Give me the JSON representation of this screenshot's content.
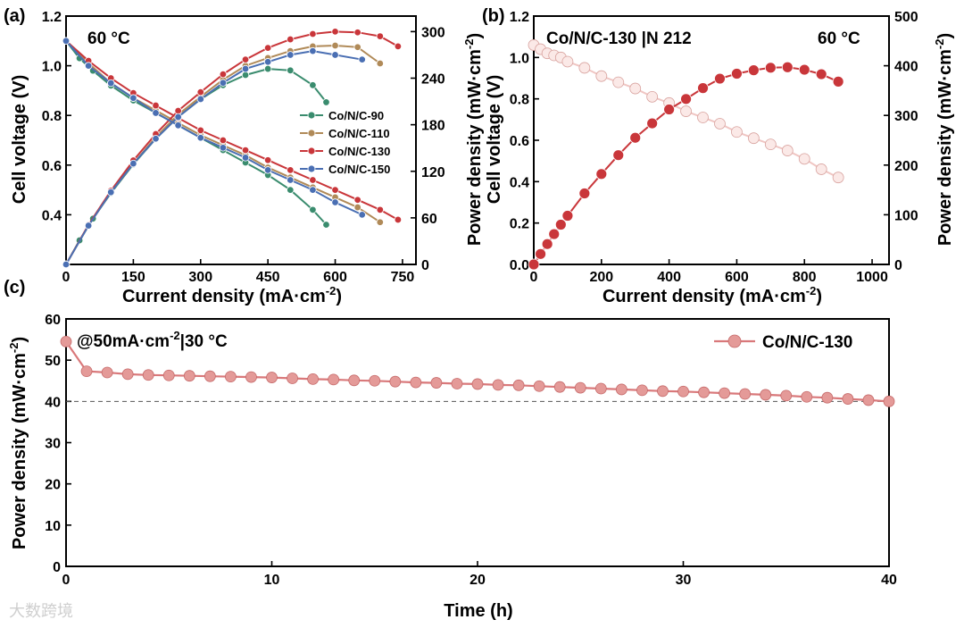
{
  "panels": {
    "a": {
      "label": "(a)",
      "temperature": "60 °C",
      "xlabel": "Current density (mA·cm",
      "xlabel_sup": "-2",
      "xlabel_end": ")",
      "ylabel_left": "Cell voltage (V)",
      "ylabel_right": "Power density (mW·cm",
      "ylabel_right_sup": "-2",
      "ylabel_right_end": ")"
    },
    "b": {
      "label": "(b)",
      "title": "Co/N/C-130 |N 212",
      "temperature": "60 °C",
      "xlabel": "Current density (mA·cm",
      "xlabel_sup": "-2",
      "xlabel_end": ")",
      "ylabel_left": "Cell voltage (V)",
      "ylabel_right": "Power density (mW·cm",
      "ylabel_right_sup": "-2",
      "ylabel_right_end": ")"
    },
    "c": {
      "label": "(c)",
      "condition": "@50mA·cm",
      "condition_sup": "-2",
      "condition_end": "|30 °C",
      "xlabel": "Time (h)",
      "ylabel": "Power density (mW·cm",
      "ylabel_sup": "-2",
      "ylabel_end": ")"
    }
  },
  "watermark": "大数跨境",
  "chart_data": [
    {
      "type": "line",
      "panel": "a",
      "title": "",
      "xlabel": "Current density (mA·cm-2)",
      "ylabel": "Cell voltage (V)",
      "y2label": "Power density (mW·cm-2)",
      "xlim": [
        0,
        780
      ],
      "ylim": [
        0.2,
        1.2
      ],
      "y2lim": [
        0,
        320
      ],
      "xticks": [
        0,
        150,
        300,
        450,
        600,
        750
      ],
      "yticks": [
        0.4,
        0.6,
        0.8,
        1.0,
        1.2
      ],
      "y2ticks": [
        0,
        60,
        120,
        180,
        240,
        300
      ],
      "legend": [
        "Co/N/C-90",
        "Co/N/C-110",
        "Co/N/C-130",
        "Co/N/C-150"
      ],
      "series": [
        {
          "name": "Co/N/C-90",
          "color": "#3a8c6e",
          "axis": "left",
          "x": [
            0,
            30,
            60,
            100,
            150,
            200,
            250,
            300,
            350,
            400,
            450,
            500,
            550,
            580
          ],
          "values": [
            1.1,
            1.03,
            0.98,
            0.92,
            0.86,
            0.81,
            0.76,
            0.71,
            0.66,
            0.61,
            0.56,
            0.5,
            0.42,
            0.36
          ]
        },
        {
          "name": "Co/N/C-90",
          "color": "#3a8c6e",
          "axis": "right",
          "x": [
            0,
            30,
            60,
            100,
            150,
            200,
            250,
            300,
            350,
            400,
            450,
            500,
            550,
            580
          ],
          "values": [
            0,
            31,
            59,
            92,
            129,
            162,
            190,
            213,
            231,
            244,
            252,
            250,
            231,
            209
          ]
        },
        {
          "name": "Co/N/C-110",
          "color": "#b08a58",
          "axis": "left",
          "x": [
            0,
            50,
            100,
            150,
            200,
            250,
            300,
            350,
            400,
            450,
            500,
            550,
            600,
            650,
            700
          ],
          "values": [
            1.1,
            1.01,
            0.93,
            0.87,
            0.82,
            0.77,
            0.72,
            0.68,
            0.64,
            0.59,
            0.55,
            0.51,
            0.47,
            0.43,
            0.37
          ]
        },
        {
          "name": "Co/N/C-110",
          "color": "#b08a58",
          "axis": "right",
          "x": [
            0,
            50,
            100,
            150,
            200,
            250,
            300,
            350,
            400,
            450,
            500,
            550,
            600,
            650,
            700
          ],
          "values": [
            0,
            50,
            93,
            130,
            164,
            193,
            216,
            238,
            256,
            266,
            275,
            281,
            282,
            280,
            259
          ]
        },
        {
          "name": "Co/N/C-130",
          "color": "#c9363a",
          "axis": "left",
          "x": [
            0,
            50,
            100,
            150,
            200,
            250,
            300,
            350,
            400,
            450,
            500,
            550,
            600,
            650,
            700,
            740
          ],
          "values": [
            1.1,
            1.02,
            0.95,
            0.89,
            0.84,
            0.79,
            0.74,
            0.7,
            0.66,
            0.62,
            0.58,
            0.54,
            0.5,
            0.46,
            0.42,
            0.38
          ]
        },
        {
          "name": "Co/N/C-130",
          "color": "#c9363a",
          "axis": "right",
          "x": [
            0,
            50,
            100,
            150,
            200,
            250,
            300,
            350,
            400,
            450,
            500,
            550,
            600,
            650,
            700,
            740
          ],
          "values": [
            0,
            51,
            95,
            134,
            168,
            198,
            222,
            245,
            264,
            279,
            290,
            297,
            300,
            299,
            294,
            281
          ]
        },
        {
          "name": "Co/N/C-150",
          "color": "#4a6fb3",
          "axis": "left",
          "x": [
            0,
            50,
            100,
            150,
            200,
            250,
            300,
            350,
            400,
            450,
            500,
            550,
            600,
            660
          ],
          "values": [
            1.1,
            1.0,
            0.93,
            0.87,
            0.81,
            0.76,
            0.71,
            0.67,
            0.63,
            0.58,
            0.54,
            0.5,
            0.45,
            0.4
          ]
        },
        {
          "name": "Co/N/C-150",
          "color": "#4a6fb3",
          "axis": "right",
          "x": [
            0,
            50,
            100,
            150,
            200,
            250,
            300,
            350,
            400,
            450,
            500,
            550,
            600,
            660
          ],
          "values": [
            0,
            50,
            93,
            130,
            162,
            190,
            213,
            234,
            252,
            261,
            270,
            275,
            270,
            264
          ]
        }
      ]
    },
    {
      "type": "line",
      "panel": "b",
      "title": "Co/N/C-130 |N 212",
      "xlabel": "Current density (mA·cm-2)",
      "ylabel": "Cell voltage (V)",
      "y2label": "Power density (mW·cm-2)",
      "xlim": [
        0,
        1050
      ],
      "ylim": [
        0.0,
        1.2
      ],
      "y2lim": [
        0,
        500
      ],
      "xticks": [
        0,
        200,
        400,
        600,
        800,
        1000
      ],
      "yticks": [
        0.0,
        0.2,
        0.4,
        0.6,
        0.8,
        1.0,
        1.2
      ],
      "y2ticks": [
        0,
        100,
        200,
        300,
        400,
        500
      ],
      "series": [
        {
          "name": "Cell voltage",
          "color": "#f0c6c3",
          "axis": "left",
          "x": [
            0,
            20,
            40,
            60,
            80,
            100,
            150,
            200,
            250,
            300,
            350,
            400,
            450,
            500,
            550,
            600,
            650,
            700,
            750,
            800,
            850,
            900
          ],
          "values": [
            1.06,
            1.04,
            1.02,
            1.01,
            1.0,
            0.98,
            0.95,
            0.91,
            0.88,
            0.85,
            0.81,
            0.78,
            0.74,
            0.71,
            0.68,
            0.64,
            0.61,
            0.58,
            0.55,
            0.51,
            0.46,
            0.42
          ]
        },
        {
          "name": "Power density",
          "color": "#c9363a",
          "axis": "right",
          "x": [
            0,
            20,
            40,
            60,
            80,
            100,
            150,
            200,
            250,
            300,
            350,
            400,
            450,
            500,
            550,
            600,
            650,
            700,
            750,
            800,
            850,
            900
          ],
          "values": [
            0,
            21,
            41,
            61,
            80,
            98,
            143,
            182,
            220,
            255,
            284,
            312,
            333,
            355,
            374,
            384,
            391,
            396,
            397,
            392,
            383,
            368
          ]
        }
      ]
    },
    {
      "type": "line",
      "panel": "c",
      "title": "",
      "xlabel": "Time (h)",
      "ylabel": "Power density (mW·cm-2)",
      "xlim": [
        0,
        40
      ],
      "ylim": [
        0,
        60
      ],
      "xticks": [
        0,
        10,
        20,
        30,
        40
      ],
      "yticks": [
        0,
        10,
        20,
        30,
        40,
        50,
        60
      ],
      "reference_line": 40,
      "legend": [
        "Co/N/C-130"
      ],
      "series": [
        {
          "name": "Co/N/C-130",
          "color": "#d9787a",
          "x": [
            0,
            1,
            2,
            3,
            4,
            5,
            6,
            7,
            8,
            9,
            10,
            11,
            12,
            13,
            14,
            15,
            16,
            17,
            18,
            19,
            20,
            21,
            22,
            23,
            24,
            25,
            26,
            27,
            28,
            29,
            30,
            31,
            32,
            33,
            34,
            35,
            36,
            37,
            38,
            39,
            40
          ],
          "values": [
            54.5,
            47.3,
            47.0,
            46.6,
            46.4,
            46.3,
            46.2,
            46.1,
            46.0,
            45.9,
            45.8,
            45.6,
            45.4,
            45.3,
            45.1,
            45.0,
            44.8,
            44.6,
            44.5,
            44.3,
            44.2,
            44.0,
            43.9,
            43.7,
            43.5,
            43.3,
            43.1,
            42.9,
            42.7,
            42.5,
            42.4,
            42.2,
            42.0,
            41.8,
            41.6,
            41.4,
            41.1,
            40.9,
            40.6,
            40.3,
            40.0
          ]
        }
      ]
    }
  ]
}
